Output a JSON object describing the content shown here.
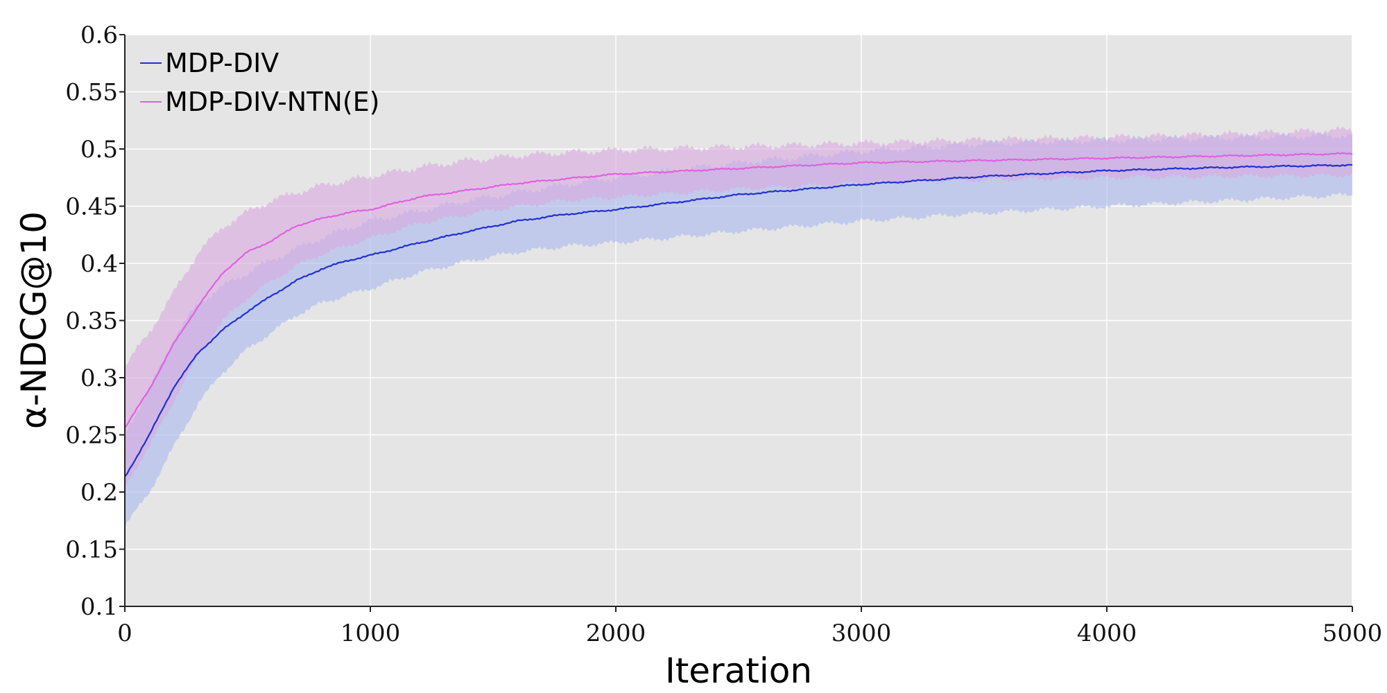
{
  "chart_data": {
    "type": "line",
    "title": "",
    "xlabel": "Iteration",
    "ylabel": "α-NDCG@10",
    "xlim": [
      0,
      5000
    ],
    "ylim": [
      0.1,
      0.6
    ],
    "x_ticks": [
      "0",
      "1000",
      "2000",
      "3000",
      "4000",
      "5000"
    ],
    "y_ticks": [
      "0.1",
      "0.15",
      "0.2",
      "0.25",
      "0.3",
      "0.35",
      "0.4",
      "0.45",
      "0.5",
      "0.55",
      "0.6"
    ],
    "grid": true,
    "legend_position": "top-left",
    "background": "#e5e5e5",
    "series": [
      {
        "name": "MDP-DIV",
        "color": "#1f2fd0",
        "band_color": "#a8b8ec",
        "x": [
          0,
          100,
          200,
          300,
          400,
          500,
          600,
          700,
          800,
          900,
          1000,
          1200,
          1400,
          1600,
          1800,
          2000,
          2500,
          3000,
          3500,
          4000,
          4500,
          5000
        ],
        "y": [
          0.213,
          0.25,
          0.292,
          0.322,
          0.342,
          0.358,
          0.372,
          0.385,
          0.395,
          0.402,
          0.407,
          0.418,
          0.428,
          0.437,
          0.443,
          0.447,
          0.46,
          0.469,
          0.476,
          0.481,
          0.484,
          0.486
        ],
        "lower": [
          0.17,
          0.2,
          0.24,
          0.278,
          0.305,
          0.325,
          0.34,
          0.355,
          0.365,
          0.372,
          0.378,
          0.392,
          0.402,
          0.41,
          0.415,
          0.418,
          0.428,
          0.437,
          0.444,
          0.45,
          0.455,
          0.46
        ],
        "upper": [
          0.252,
          0.29,
          0.335,
          0.365,
          0.38,
          0.392,
          0.403,
          0.413,
          0.422,
          0.43,
          0.437,
          0.446,
          0.455,
          0.462,
          0.469,
          0.475,
          0.488,
          0.498,
          0.505,
          0.508,
          0.51,
          0.512
        ]
      },
      {
        "name": "MDP-DIV-NTN(E)",
        "color": "#e060e0",
        "band_color": "#d8a8e0",
        "x": [
          0,
          100,
          200,
          300,
          400,
          500,
          600,
          700,
          800,
          900,
          1000,
          1200,
          1400,
          1600,
          1800,
          2000,
          2500,
          3000,
          3500,
          4000,
          4500,
          5000
        ],
        "y": [
          0.256,
          0.29,
          0.33,
          0.363,
          0.392,
          0.41,
          0.42,
          0.433,
          0.439,
          0.444,
          0.447,
          0.458,
          0.464,
          0.47,
          0.474,
          0.478,
          0.483,
          0.488,
          0.49,
          0.492,
          0.494,
          0.496
        ],
        "lower": [
          0.205,
          0.24,
          0.28,
          0.32,
          0.35,
          0.37,
          0.385,
          0.398,
          0.408,
          0.415,
          0.422,
          0.435,
          0.443,
          0.45,
          0.455,
          0.458,
          0.465,
          0.47,
          0.473,
          0.475,
          0.476,
          0.477
        ],
        "upper": [
          0.31,
          0.34,
          0.375,
          0.41,
          0.432,
          0.445,
          0.455,
          0.462,
          0.468,
          0.472,
          0.476,
          0.484,
          0.49,
          0.494,
          0.497,
          0.499,
          0.502,
          0.505,
          0.508,
          0.51,
          0.513,
          0.517
        ]
      }
    ]
  }
}
